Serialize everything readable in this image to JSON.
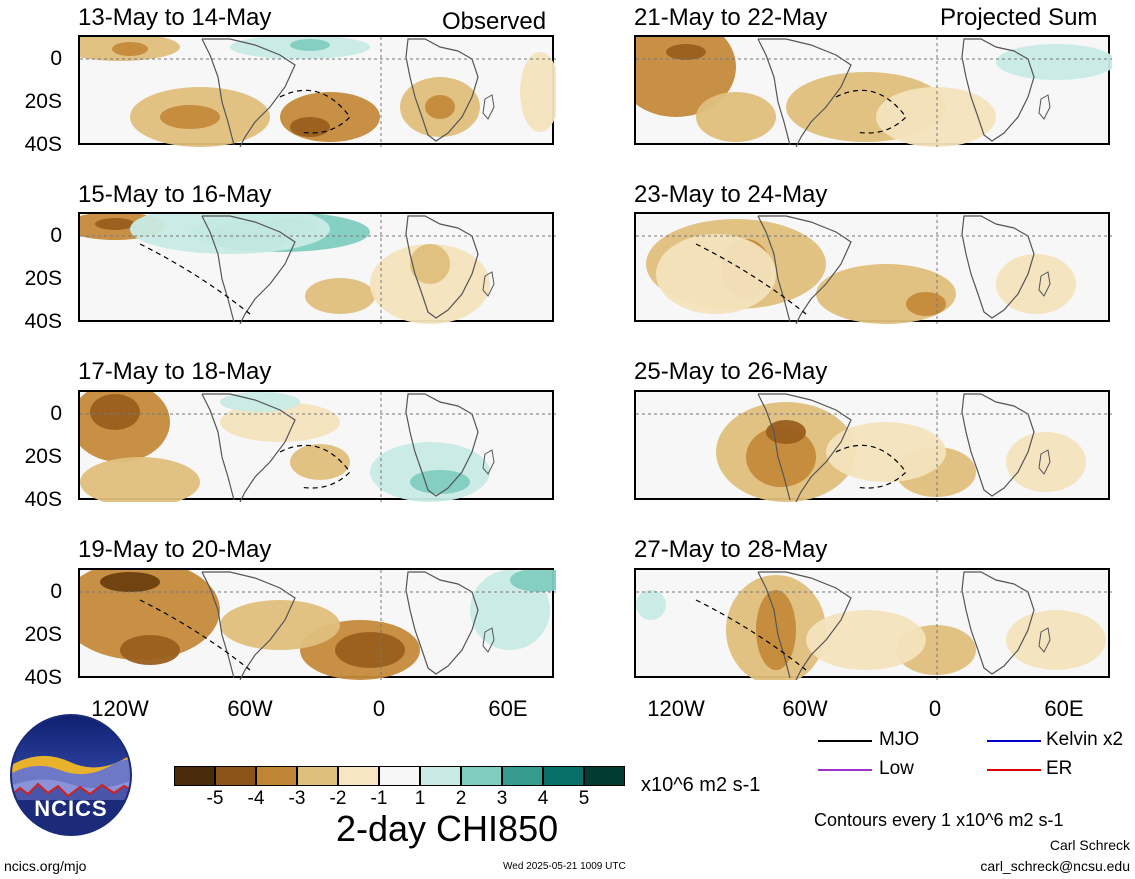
{
  "figure": {
    "variable_title": "2-day CHI850",
    "units": "x10^6 m2 s-1",
    "contours_note": "Contours every 1 x10^6 m2 s-1",
    "left_column_label": "Observed",
    "right_column_label": "Projected Sum"
  },
  "axes": {
    "y_ticks": [
      "0",
      "20S",
      "40S"
    ],
    "x_ticks": [
      "120W",
      "60W",
      "0",
      "60E"
    ]
  },
  "panels": [
    {
      "title": "13-May to 14-May",
      "column": "observed"
    },
    {
      "title": "15-May to 16-May",
      "column": "observed"
    },
    {
      "title": "17-May to 18-May",
      "column": "observed"
    },
    {
      "title": "19-May to 20-May",
      "column": "observed"
    },
    {
      "title": "21-May to 22-May",
      "column": "projected"
    },
    {
      "title": "23-May to 24-May",
      "column": "projected"
    },
    {
      "title": "25-May to 26-May",
      "column": "projected"
    },
    {
      "title": "27-May to 28-May",
      "column": "projected"
    }
  ],
  "colorbar": {
    "labels": [
      "-5",
      "-4",
      "-3",
      "-2",
      "-1",
      "1",
      "2",
      "3",
      "4",
      "5"
    ],
    "colors": [
      "#4a2c0c",
      "#8c5318",
      "#bf8434",
      "#dfbf7c",
      "#f6e6c2",
      "#f7f7f7",
      "#c8ebe5",
      "#80cdc0",
      "#369a8e",
      "#087068",
      "#023c30"
    ]
  },
  "legend": {
    "items": [
      {
        "label": "MJO",
        "color": "#000000"
      },
      {
        "label": "Kelvin x2",
        "color": "#0000cc"
      },
      {
        "label": "Low",
        "color": "#9933cc"
      },
      {
        "label": "ER",
        "color": "#dd0000"
      }
    ]
  },
  "logo": {
    "text": "NCICS"
  },
  "footer": {
    "url": "ncics.org/mjo",
    "timestamp": "Wed 2025-05-21 1009 UTC",
    "author": "Carl Schreck",
    "email": "carl_schreck@ncsu.edu"
  }
}
